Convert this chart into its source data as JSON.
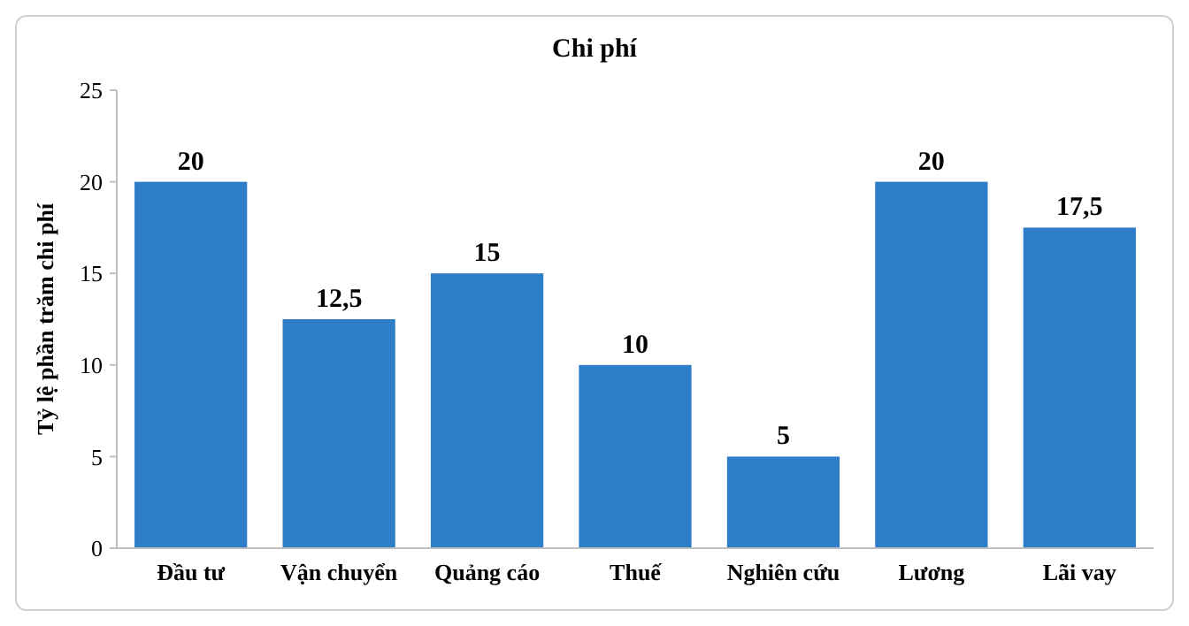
{
  "chart_data": {
    "type": "bar",
    "title": "Chi phí",
    "ylabel": "Tỷ lệ phần trăm chi phí",
    "categories": [
      "Đầu tư",
      "Vận chuyển",
      "Quảng cáo",
      "Thuế",
      "Nghiên cứu",
      "Lương",
      "Lãi vay"
    ],
    "values": [
      20,
      12.5,
      15,
      10,
      5,
      20,
      17.5
    ],
    "value_labels": [
      "20",
      "12,5",
      "15",
      "10",
      "5",
      "20",
      "17,5"
    ],
    "color": "#2e7dc8",
    "ylim": [
      0,
      25
    ],
    "yticks": [
      0,
      5,
      10,
      15,
      20,
      25
    ],
    "grid": false
  }
}
